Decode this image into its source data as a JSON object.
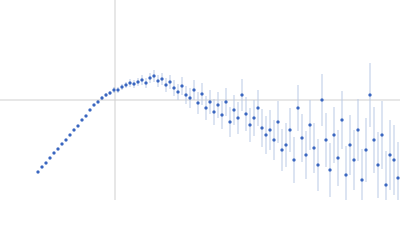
{
  "chart_data": {
    "type": "scatter",
    "x": [
      38,
      42,
      46,
      50,
      54,
      58,
      62,
      66,
      70,
      74,
      78,
      82,
      86,
      90,
      94,
      98,
      102,
      106,
      110,
      114,
      118,
      122,
      126,
      130,
      134,
      138,
      142,
      146,
      150,
      154,
      158,
      162,
      166,
      170,
      174,
      178,
      182,
      186,
      190,
      194,
      198,
      202,
      206,
      210,
      214,
      218,
      222,
      226,
      230,
      234,
      238,
      242,
      246,
      250,
      254,
      258,
      262,
      266,
      270,
      274,
      278,
      282,
      286,
      290,
      294,
      298,
      302,
      306,
      310,
      314,
      318,
      322,
      326,
      330,
      334,
      338,
      342,
      346,
      350,
      354,
      358,
      362,
      366,
      370,
      374,
      378,
      382,
      386,
      390,
      394,
      398
    ],
    "values": [
      -72,
      -67,
      -63,
      -58,
      -53,
      -49,
      -44,
      -40,
      -35,
      -30,
      -26,
      -20,
      -16,
      -10,
      -5,
      -2,
      2,
      5,
      7,
      10,
      10,
      13,
      15,
      17,
      16,
      18,
      20,
      17,
      22,
      24,
      19,
      21,
      15,
      18,
      12,
      8,
      14,
      5,
      2,
      10,
      -3,
      6,
      -8,
      -2,
      -12,
      -5,
      -15,
      -2,
      -22,
      -10,
      -18,
      5,
      -14,
      -25,
      -18,
      -8,
      -28,
      -35,
      -30,
      -40,
      -22,
      -50,
      -45,
      -30,
      -60,
      -8,
      -38,
      -55,
      -25,
      -48,
      -65,
      0,
      -40,
      -70,
      -35,
      -58,
      -20,
      -75,
      -45,
      -60,
      -30,
      -80,
      -50,
      5,
      -40,
      -65,
      -35,
      -85,
      -55,
      -60,
      -78
    ],
    "errors": [
      1,
      1,
      1,
      1,
      1,
      1,
      1,
      1,
      1,
      1,
      1,
      1,
      1,
      1,
      1,
      1,
      2,
      2,
      2,
      3,
      3,
      3,
      3,
      4,
      4,
      4,
      5,
      5,
      5,
      6,
      6,
      6,
      7,
      7,
      8,
      8,
      9,
      9,
      10,
      10,
      11,
      11,
      12,
      12,
      13,
      13,
      14,
      14,
      15,
      15,
      16,
      16,
      17,
      17,
      18,
      18,
      19,
      19,
      20,
      20,
      21,
      21,
      22,
      22,
      23,
      23,
      24,
      24,
      25,
      25,
      26,
      26,
      27,
      27,
      28,
      28,
      29,
      29,
      30,
      30,
      31,
      31,
      32,
      32,
      33,
      33,
      34,
      34,
      35,
      35,
      36
    ],
    "color": "#3a66c0",
    "error_color": "#b9c9e6",
    "xlim": [
      0,
      400
    ],
    "ylim": [
      -100,
      100
    ],
    "x_reference": 115,
    "y_reference": 0
  }
}
